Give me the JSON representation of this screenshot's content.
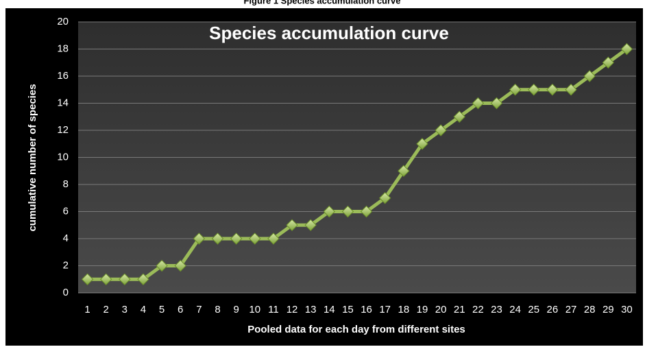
{
  "caption": "Figure 1 Species accumulation curve",
  "chart_data": {
    "type": "line",
    "title": "Species accumulation curve",
    "x_label": "Pooled data for each day from different sites",
    "y_label": "cumulative number of species",
    "categories": [
      1,
      2,
      3,
      4,
      5,
      6,
      7,
      8,
      9,
      10,
      11,
      12,
      13,
      14,
      15,
      16,
      17,
      18,
      19,
      20,
      21,
      22,
      23,
      24,
      25,
      26,
      27,
      28,
      29,
      30
    ],
    "series": [
      {
        "name": "Species",
        "color": "#9bbb59",
        "values": [
          1,
          1,
          1,
          1,
          2,
          2,
          4,
          4,
          4,
          4,
          4,
          5,
          5,
          6,
          6,
          6,
          7,
          9,
          11,
          12,
          13,
          14,
          14,
          15,
          15,
          15,
          15,
          16,
          17,
          18
        ]
      }
    ],
    "ylim": [
      0,
      20
    ],
    "yticks": [
      0,
      2,
      4,
      6,
      8,
      10,
      12,
      14,
      16,
      18,
      20
    ],
    "grid": true
  }
}
